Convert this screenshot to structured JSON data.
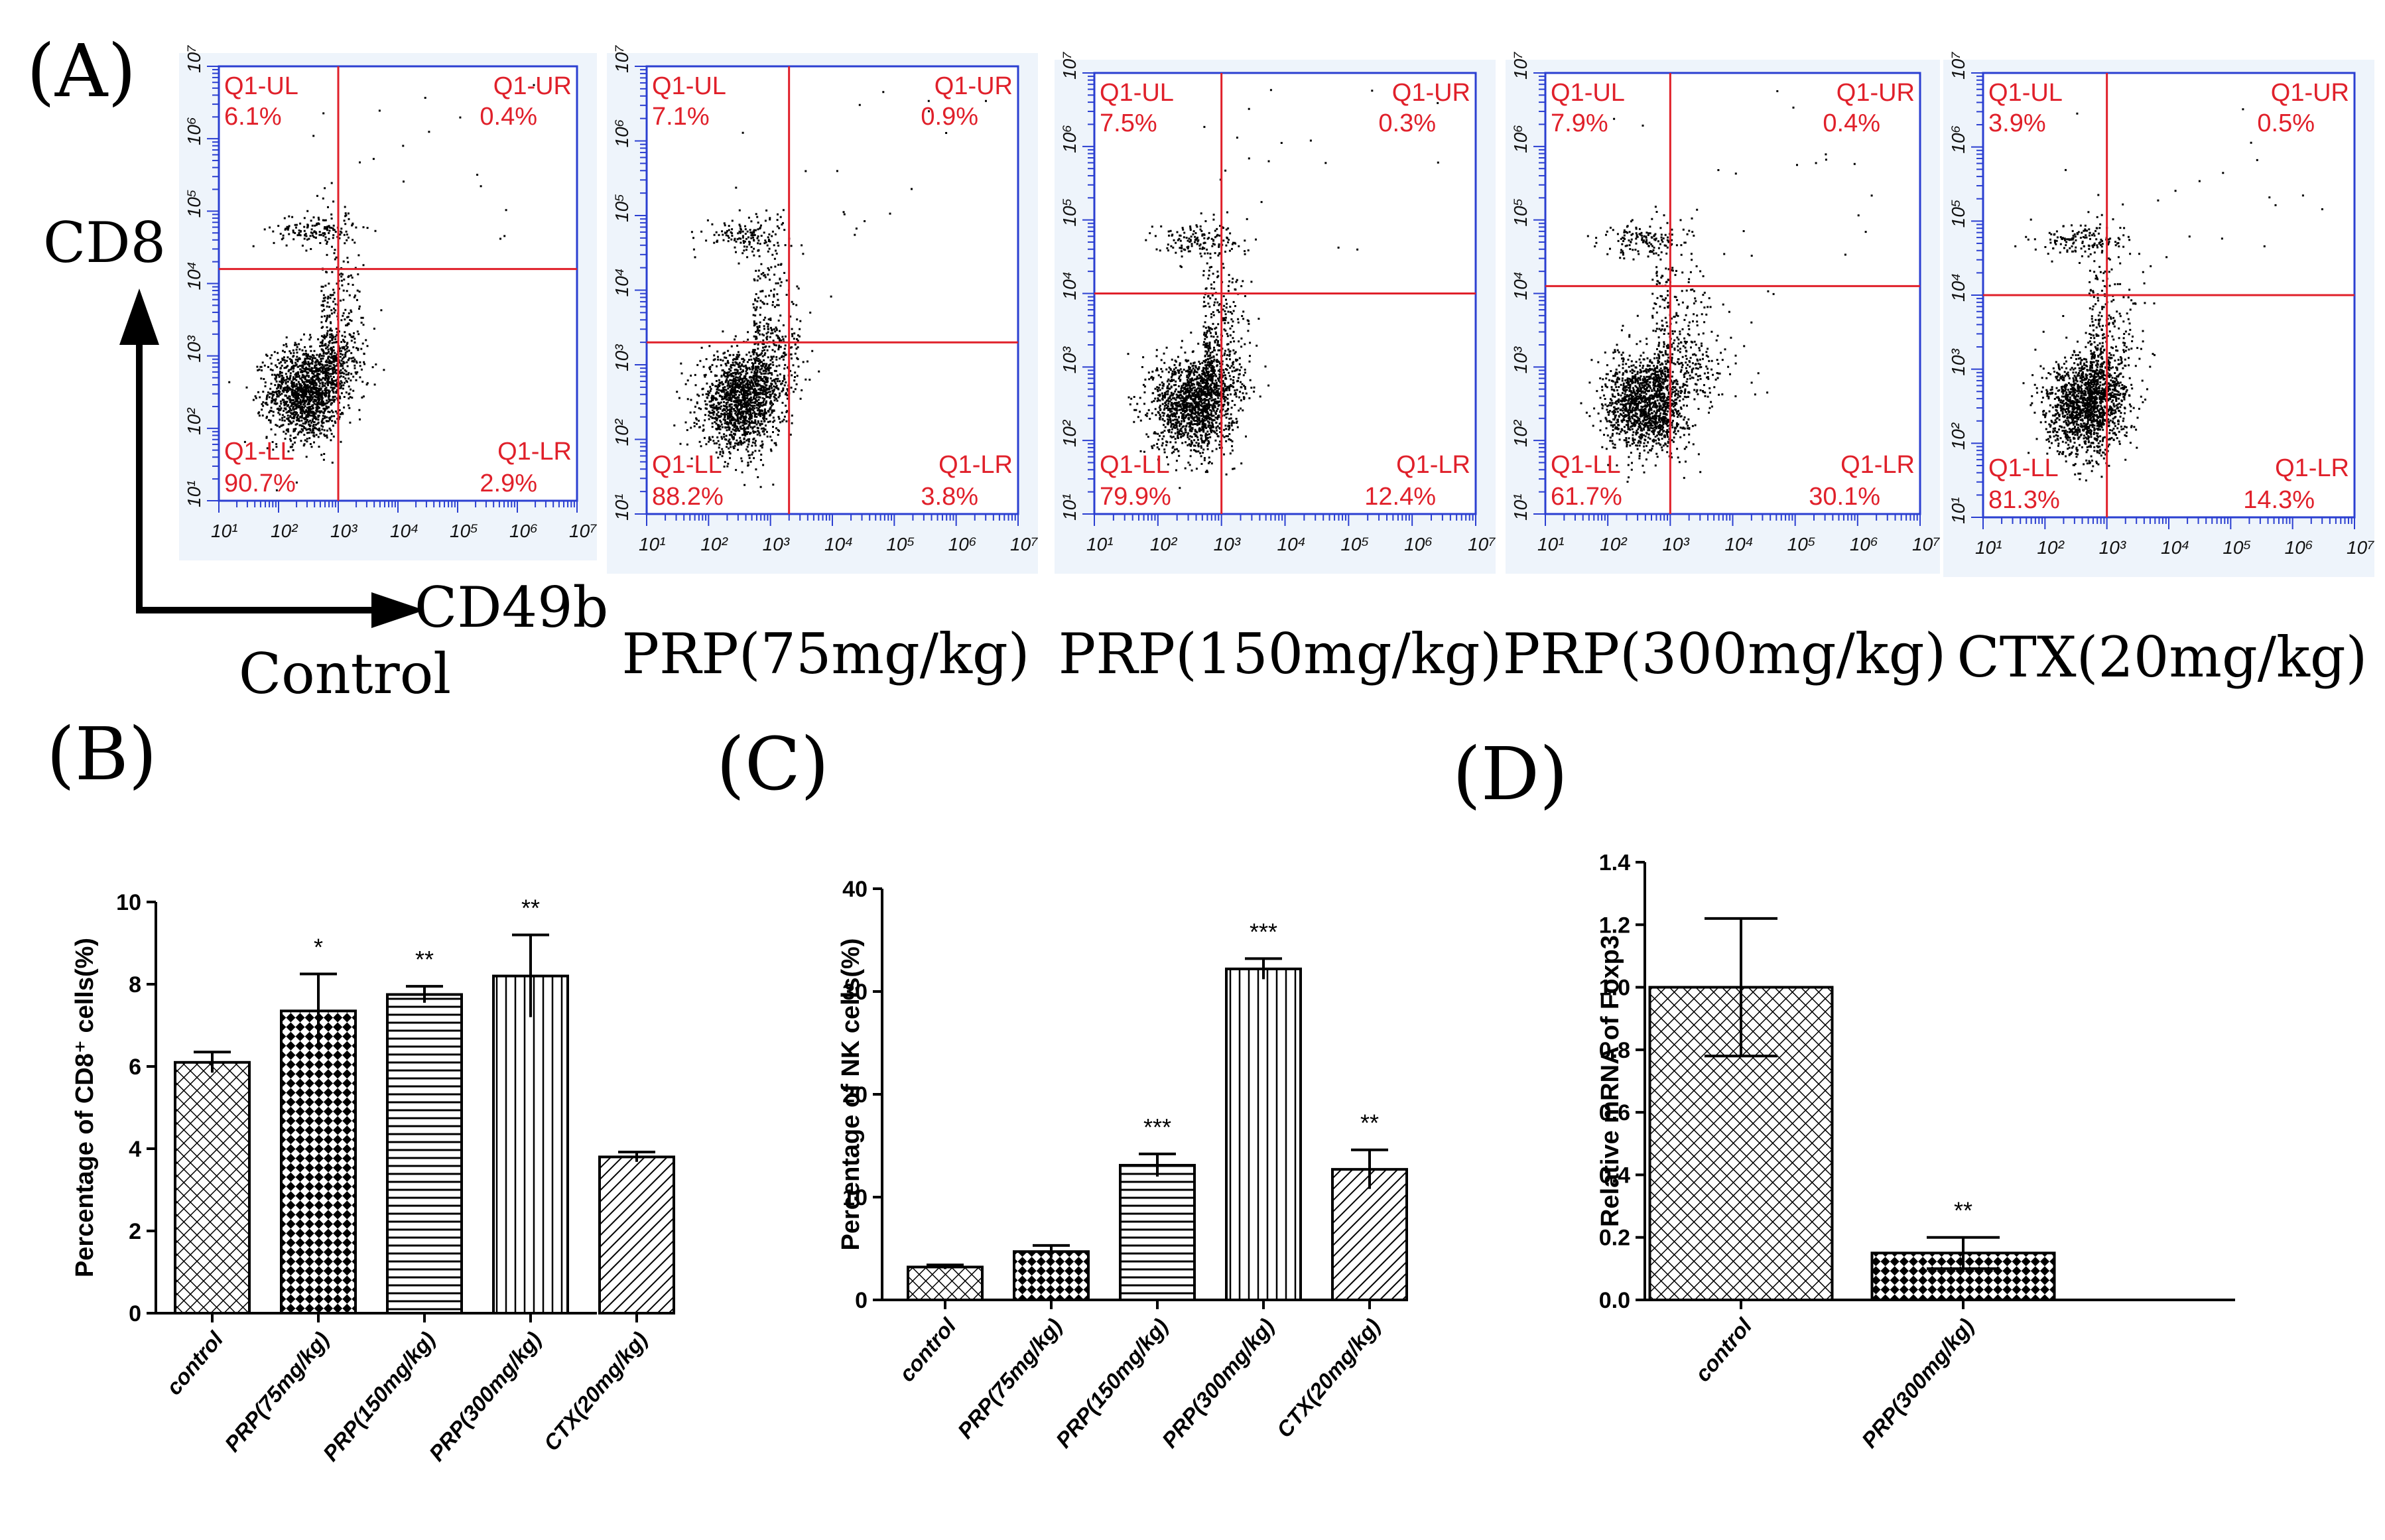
{
  "panels": {
    "a": "(A)",
    "b": "(B)",
    "c": "(C)",
    "d": "(D)"
  },
  "flow": {
    "y_marker": "CD8",
    "x_marker": "CD49b",
    "tick_labels": [
      "10¹",
      "10²",
      "10³",
      "10⁴",
      "10⁵",
      "10⁶",
      "10⁷"
    ],
    "quadrant_names": [
      "Q1-UL",
      "Q1-UR",
      "Q1-LL",
      "Q1-LR"
    ],
    "plots": [
      {
        "group": "Control",
        "ul": "6.1%",
        "ur": "0.4%",
        "ll": "90.7%",
        "lr": "2.9%",
        "gate_x": 3.0,
        "gate_y": 4.2
      },
      {
        "group": "PRP(75mg/kg)",
        "ul": "7.1%",
        "ur": "0.9%",
        "ll": "88.2%",
        "lr": "3.8%",
        "gate_x": 3.3,
        "gate_y": 3.3
      },
      {
        "group": "PRP(150mg/kg)",
        "ul": "7.5%",
        "ur": "0.3%",
        "ll": "79.9%",
        "lr": "12.4%",
        "gate_x": 3.0,
        "gate_y": 4.0
      },
      {
        "group": "PRP(300mg/kg)",
        "ul": "7.9%",
        "ur": "0.4%",
        "ll": "61.7%",
        "lr": "30.1%",
        "gate_x": 3.0,
        "gate_y": 4.1
      },
      {
        "group": "CTX(20mg/kg)",
        "ul": "3.9%",
        "ur": "0.5%",
        "ll": "81.3%",
        "lr": "14.3%",
        "gate_x": 3.0,
        "gate_y": 4.0
      }
    ]
  },
  "chart_data": [
    {
      "type": "bar",
      "panel": "B",
      "ylabel": "Percentage of CD8⁺ cells(%)",
      "categories": [
        "control",
        "PRP(75mg/kg)",
        "PRP(150mg/kg)",
        "PRP(300mg/kg)",
        "CTX(20mg/kg)"
      ],
      "values": [
        6.1,
        7.35,
        7.75,
        8.2,
        3.8
      ],
      "errors": [
        0.25,
        0.9,
        0.2,
        1.0,
        0.12
      ],
      "significance": [
        "",
        "*",
        "**",
        "**",
        ""
      ],
      "patterns": [
        "cross",
        "checker",
        "hline",
        "vline",
        "diag"
      ],
      "ylim": [
        0,
        10
      ],
      "yticks": [
        0,
        2,
        4,
        6,
        8,
        10
      ]
    },
    {
      "type": "bar",
      "panel": "C",
      "ylabel": "Percentage of NK cells(%)",
      "categories": [
        "control",
        "PRP(75mg/kg)",
        "PRP(150mg/kg)",
        "PRP(300mg/kg)",
        "CTX(20mg/kg)"
      ],
      "values": [
        3.2,
        4.7,
        13.1,
        32.2,
        12.7
      ],
      "errors": [
        0.2,
        0.6,
        1.1,
        1.0,
        1.9
      ],
      "significance": [
        "",
        "",
        "***",
        "***",
        "**"
      ],
      "patterns": [
        "cross",
        "checker",
        "hline",
        "vline",
        "diag"
      ],
      "ylim": [
        0,
        40
      ],
      "yticks": [
        0,
        10,
        20,
        30,
        40
      ]
    },
    {
      "type": "bar",
      "panel": "D",
      "ylabel": "Relative mRNA of Foxp3",
      "categories": [
        "control",
        "PRP(300mg/kg)"
      ],
      "values": [
        1.0,
        0.15
      ],
      "errors": [
        0.22,
        0.05
      ],
      "significance": [
        "",
        "**"
      ],
      "patterns": [
        "cross",
        "checker"
      ],
      "ylim": [
        0,
        1.4
      ],
      "yticks": [
        "0.0",
        "0.2",
        "0.4",
        "0.6",
        "0.8",
        "1.0",
        "1.2",
        "1.4"
      ]
    }
  ]
}
